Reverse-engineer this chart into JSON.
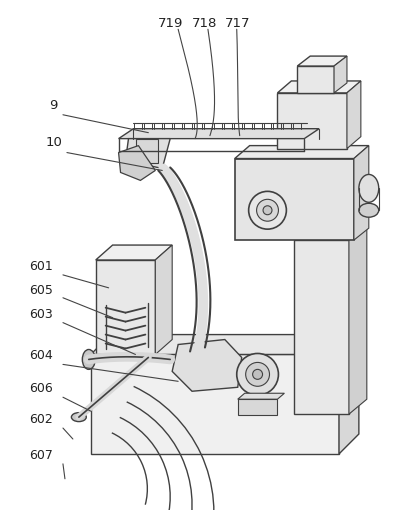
{
  "title": "",
  "background_color": "#ffffff",
  "line_color": "#404040",
  "label_color": "#222222",
  "figsize": [
    3.97,
    5.11
  ],
  "dpi": 100
}
